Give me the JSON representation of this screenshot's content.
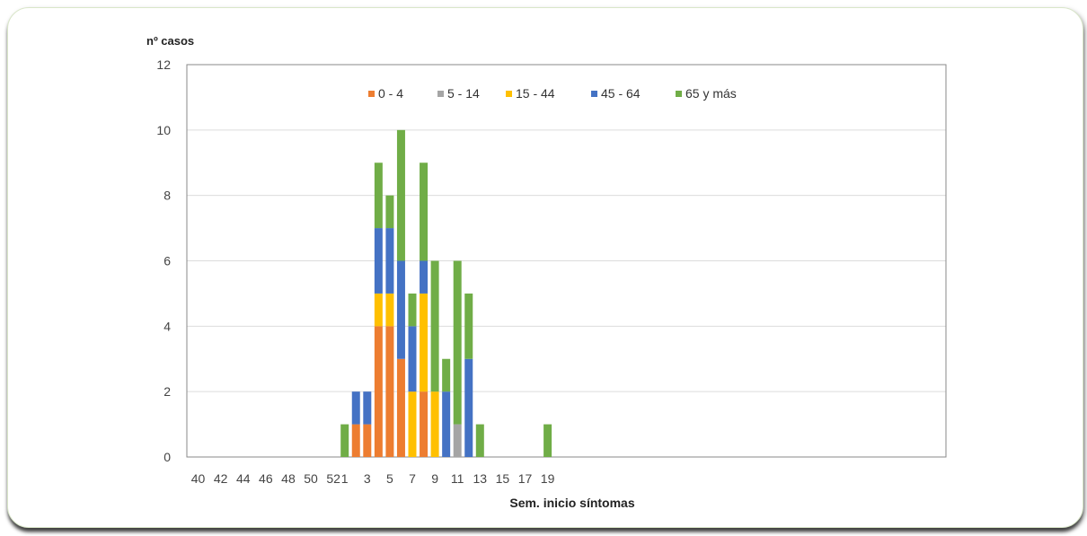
{
  "chart_data": {
    "type": "bar",
    "stacked": true,
    "title": "",
    "ylabel": "nº casos",
    "xlabel": "Sem. inicio síntomas",
    "ylim": [
      0,
      12
    ],
    "yticks": [
      0,
      2,
      4,
      6,
      8,
      10,
      12
    ],
    "grid": true,
    "legend_position": "top-center",
    "categories": [
      "40",
      "41",
      "42",
      "43",
      "44",
      "45",
      "46",
      "47",
      "48",
      "49",
      "50",
      "51",
      "52",
      "1",
      "2",
      "3",
      "4",
      "5",
      "6",
      "7",
      "8",
      "9",
      "10",
      "11",
      "12",
      "13",
      "14",
      "15",
      "16",
      "17",
      "18",
      "19"
    ],
    "tick_labels": [
      "40",
      "42",
      "44",
      "46",
      "48",
      "50",
      "52",
      "1",
      "3",
      "5",
      "7",
      "9",
      "11",
      "13",
      "15",
      "17",
      "19"
    ],
    "series": [
      {
        "name": "0 - 4",
        "color": "#ed7d31",
        "values": [
          0,
          0,
          0,
          0,
          0,
          0,
          0,
          0,
          0,
          0,
          0,
          0,
          0,
          0,
          1,
          1,
          4,
          4,
          3,
          0,
          2,
          0,
          0,
          0,
          0,
          0,
          0,
          0,
          0,
          0,
          0,
          0
        ]
      },
      {
        "name": "5 - 14",
        "color": "#a5a5a5",
        "values": [
          0,
          0,
          0,
          0,
          0,
          0,
          0,
          0,
          0,
          0,
          0,
          0,
          0,
          0,
          0,
          0,
          0,
          0,
          0,
          0,
          0,
          0,
          0,
          1,
          0,
          0,
          0,
          0,
          0,
          0,
          0,
          0
        ]
      },
      {
        "name": "15 - 44",
        "color": "#ffc000",
        "values": [
          0,
          0,
          0,
          0,
          0,
          0,
          0,
          0,
          0,
          0,
          0,
          0,
          0,
          0,
          0,
          0,
          1,
          1,
          0,
          2,
          3,
          2,
          0,
          0,
          0,
          0,
          0,
          0,
          0,
          0,
          0,
          0
        ]
      },
      {
        "name": "45 - 64",
        "color": "#4472c4",
        "values": [
          0,
          0,
          0,
          0,
          0,
          0,
          0,
          0,
          0,
          0,
          0,
          0,
          0,
          0,
          1,
          1,
          2,
          2,
          3,
          2,
          1,
          0,
          2,
          0,
          3,
          0,
          0,
          0,
          0,
          0,
          0,
          0
        ]
      },
      {
        "name": "65 y más",
        "color": "#70ad47",
        "values": [
          0,
          0,
          0,
          0,
          0,
          0,
          0,
          0,
          0,
          0,
          0,
          0,
          0,
          1,
          0,
          0,
          2,
          1,
          4,
          1,
          3,
          4,
          1,
          5,
          2,
          1,
          0,
          0,
          0,
          0,
          0,
          1
        ]
      }
    ]
  }
}
